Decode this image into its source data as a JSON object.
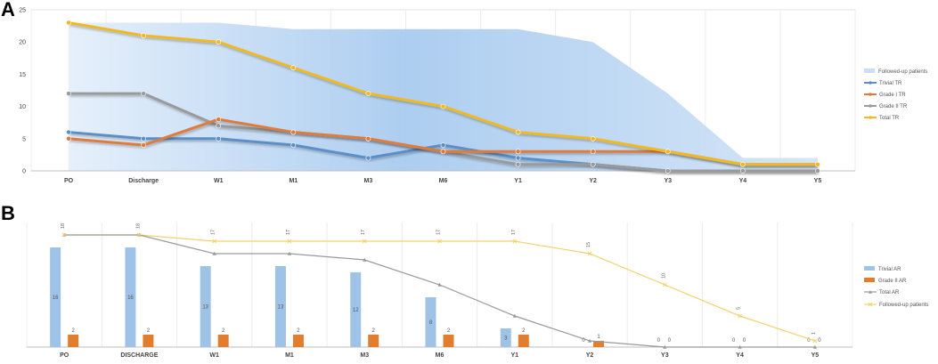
{
  "panels": {
    "a_label": "A",
    "b_label": "B"
  },
  "chart_data": [
    {
      "type": "line",
      "panel": "A",
      "categories": [
        "PO",
        "Discharge",
        "W1",
        "M1",
        "M3",
        "M6",
        "Y1",
        "Y2",
        "Y3",
        "Y4",
        "Y5"
      ],
      "ylim": [
        0,
        25
      ],
      "yticks": [
        0,
        5,
        10,
        15,
        20,
        25
      ],
      "grid": "vertical",
      "legend_position": "right",
      "area": {
        "name": "Followed-up patients",
        "values": [
          23,
          23,
          23,
          22,
          22,
          22,
          22,
          20,
          12,
          2,
          2
        ],
        "color": "#c9ddf5"
      },
      "series": [
        {
          "name": "Trivial TR",
          "values": [
            6,
            5,
            5,
            4,
            2,
            4,
            2,
            1,
            0,
            0,
            0
          ],
          "color": "#5b8fc7"
        },
        {
          "name": "Grade I TR",
          "values": [
            5,
            4,
            8,
            6,
            5,
            3,
            3,
            3,
            3,
            1,
            1
          ],
          "color": "#dd7b3c"
        },
        {
          "name": "Grade II TR",
          "values": [
            12,
            12,
            7,
            6,
            5,
            3,
            1,
            1,
            0,
            0,
            0
          ],
          "color": "#9a9a9a"
        },
        {
          "name": "Total TR",
          "values": [
            23,
            21,
            20,
            16,
            12,
            10,
            6,
            5,
            3,
            1,
            1
          ],
          "color": "#f0b921"
        }
      ]
    },
    {
      "type": "bar",
      "panel": "B",
      "categories": [
        "PO",
        "DISCHARGE",
        "W1",
        "M1",
        "M3",
        "M6",
        "Y1",
        "Y2",
        "Y3",
        "Y4",
        "Y5"
      ],
      "ylim": [
        0,
        20
      ],
      "grid": "vertical",
      "legend_position": "right",
      "bars": [
        {
          "name": "Trivial AR",
          "values": [
            16,
            16,
            13,
            13,
            12,
            8,
            3,
            0,
            0,
            0,
            0
          ],
          "color": "#9fc3e7"
        },
        {
          "name": "Grade II AR",
          "values": [
            2,
            2,
            2,
            2,
            2,
            2,
            2,
            1,
            0,
            0,
            0
          ],
          "color": "#e37d2e"
        }
      ],
      "lines": [
        {
          "name": "Total AR",
          "values": [
            18,
            18,
            15,
            15,
            14,
            10,
            5,
            1,
            0,
            0,
            0
          ],
          "color": "#9a9a9a"
        },
        {
          "name": "Followed-up patients",
          "values": [
            18,
            18,
            17,
            17,
            17,
            17,
            17,
            15,
            10,
            5,
            1
          ],
          "color": "#f2d36b"
        }
      ],
      "bar_labels": {
        "trivial": [
          "16",
          "16",
          "13",
          "13",
          "12",
          "8",
          "3",
          "0",
          "0",
          "0",
          "0"
        ],
        "grade2": [
          "2",
          "2",
          "2",
          "2",
          "2",
          "2",
          "2",
          "1",
          "0",
          "0",
          "0"
        ],
        "followed": [
          "18",
          "18",
          "17",
          "17",
          "17",
          "17",
          "17",
          "15",
          "10",
          "5",
          "1"
        ]
      }
    }
  ]
}
